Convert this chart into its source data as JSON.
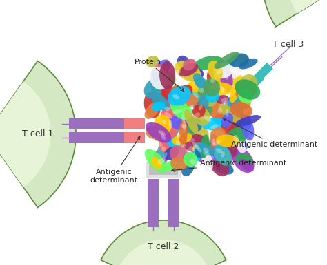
{
  "bg_color": "#ffffff",
  "cell_color_face": "#d4e8c4",
  "cell_color_edge": "#5a8a3a",
  "cell_color_inner": "#e8f4d8",
  "tcell1_label": "T cell 1",
  "tcell2_label": "T cell 2",
  "tcell3_label": "T cell 3",
  "label_fontsize": 9,
  "protein_label": "Protein",
  "antigenic_label1": "Antigenic\ndeterminant",
  "antigenic_label2": "Antigenic determinant",
  "antigenic_label3": "Antigenic determinant",
  "receptor_purple": "#9b6fbe",
  "receptor_teal": "#3dbdba",
  "receptor_salmon": "#f08080",
  "receptor_gray": "#c0c0c0",
  "receptor_lightgray": "#e0e0e0",
  "annot_fontsize": 8
}
